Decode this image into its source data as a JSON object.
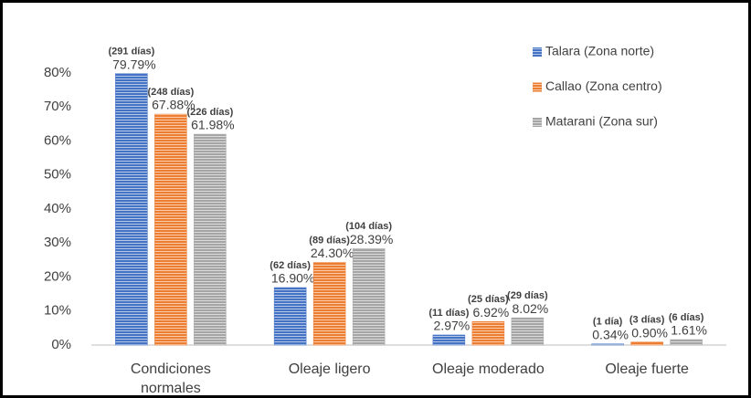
{
  "chart_data": {
    "type": "bar",
    "categories": [
      "Condiciones normales",
      "Oleaje ligero",
      "Oleaje moderado",
      "Oleaje fuerte"
    ],
    "series": [
      {
        "name": "Talara (Zona norte)",
        "color": "#4472c4",
        "values": [
          79.79,
          16.9,
          2.97,
          0.34
        ],
        "value_labels": [
          "79.79%",
          "16.90%",
          "2.97%",
          "0.34%"
        ],
        "annotations": [
          "(291 días)",
          "(62 días)",
          "(11 días)",
          "(1 día)"
        ]
      },
      {
        "name": "Callao (Zona centro)",
        "color": "#ed7d31",
        "values": [
          67.88,
          24.3,
          6.92,
          0.9
        ],
        "value_labels": [
          "67.88%",
          "24.30%",
          "6.92%",
          "0.90%"
        ],
        "annotations": [
          "(248 días)",
          "(89 días)",
          "(25 días)",
          "(3 días)"
        ]
      },
      {
        "name": "Matarani (Zona sur)",
        "color": "#a5a5a5",
        "values": [
          61.98,
          28.39,
          8.02,
          1.61
        ],
        "value_labels": [
          "61.98%",
          "28.39%",
          "8.02%",
          "1.61%"
        ],
        "annotations": [
          "(226 días)",
          "(104 días)",
          "(29 días)",
          "(6 días)"
        ]
      }
    ],
    "ylim": [
      0,
      90
    ],
    "yticks": [
      {
        "value": 0,
        "label": "0%"
      },
      {
        "value": 10,
        "label": "10%"
      },
      {
        "value": 20,
        "label": "20%"
      },
      {
        "value": 30,
        "label": "30%"
      },
      {
        "value": 40,
        "label": "40%"
      },
      {
        "value": 50,
        "label": "50%"
      },
      {
        "value": 60,
        "label": "60%"
      },
      {
        "value": 70,
        "label": "70%"
      },
      {
        "value": 80,
        "label": "80%"
      }
    ],
    "legend": "top-right",
    "grid": false
  }
}
